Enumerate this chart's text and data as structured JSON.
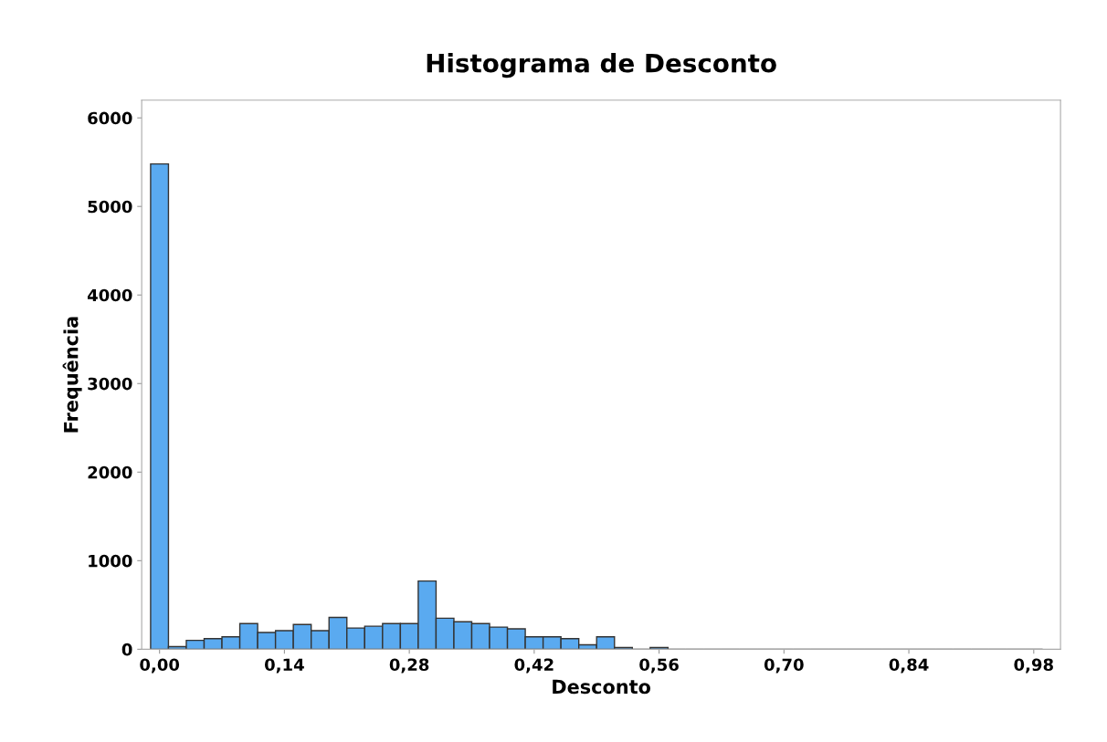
{
  "chart_data": {
    "type": "histogram",
    "title": "Histograma de Desconto",
    "xlabel": "Desconto",
    "ylabel": "Frequência",
    "bins": [
      -0.01,
      0.01,
      0.03,
      0.05,
      0.07,
      0.09,
      0.11,
      0.13,
      0.15,
      0.17,
      0.19,
      0.21,
      0.23,
      0.25,
      0.27,
      0.29,
      0.31,
      0.33,
      0.35,
      0.37,
      0.39,
      0.41,
      0.43,
      0.45,
      0.47,
      0.49,
      0.51,
      0.53,
      0.55,
      0.57,
      0.59,
      0.61,
      0.63,
      0.65,
      0.67,
      0.69,
      0.71,
      0.73,
      0.75,
      0.77,
      0.79,
      0.81,
      0.83,
      0.85,
      0.87,
      0.89,
      0.91,
      0.93,
      0.95,
      0.97,
      0.99
    ],
    "values": [
      5480,
      30,
      100,
      120,
      140,
      290,
      190,
      210,
      280,
      210,
      360,
      240,
      260,
      290,
      290,
      770,
      350,
      310,
      290,
      250,
      230,
      140,
      140,
      120,
      50,
      140,
      20,
      0,
      20,
      0,
      0,
      0,
      0,
      0,
      0,
      0,
      0,
      0,
      0,
      0,
      0,
      0,
      0,
      0,
      0,
      0,
      0,
      0,
      0,
      0
    ],
    "color": "#5aaaf0",
    "xlim": [
      -0.02,
      1.01
    ],
    "xticks": [
      {
        "value": 0,
        "label": "0,00"
      },
      {
        "value": 0.14,
        "label": "0,14"
      },
      {
        "value": 0.28,
        "label": "0,28"
      },
      {
        "value": 0.42,
        "label": "0,42"
      },
      {
        "value": 0.56,
        "label": "0,56"
      },
      {
        "value": 0.7,
        "label": "0,70"
      },
      {
        "value": 0.84,
        "label": "0,84"
      },
      {
        "value": 0.98,
        "label": "0,98"
      }
    ],
    "ylim": [
      0,
      6200
    ],
    "yticks": [
      0,
      1000,
      2000,
      3000,
      4000,
      5000,
      6000
    ],
    "grid": false
  }
}
